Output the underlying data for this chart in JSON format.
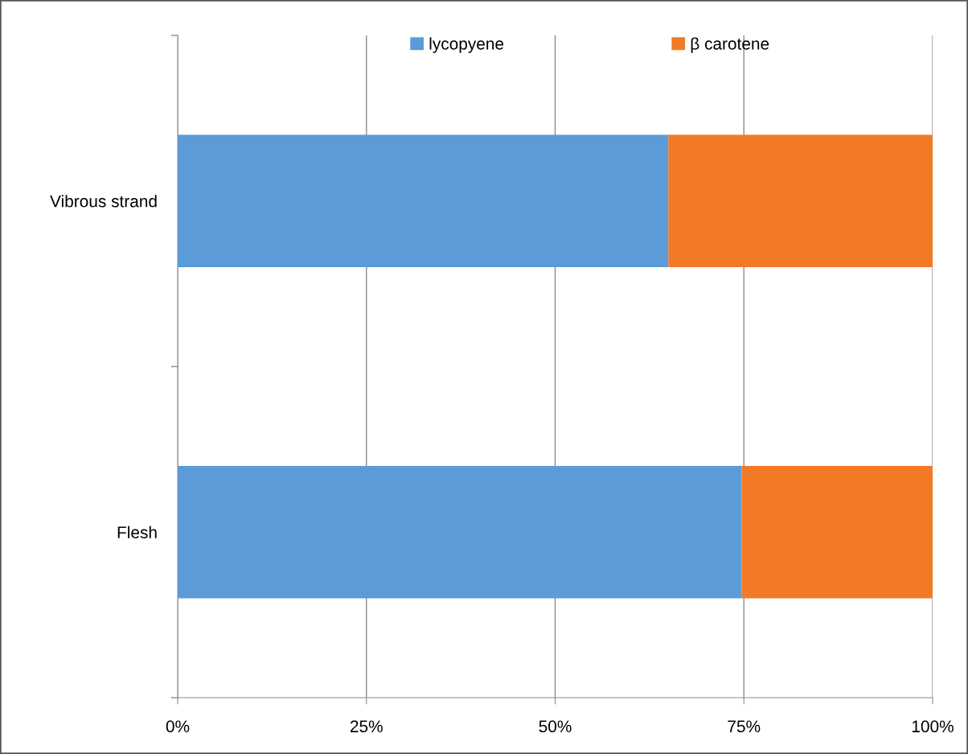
{
  "chart_data": {
    "type": "bar",
    "orientation": "horizontal",
    "stacked": true,
    "categories": [
      "Vibrous strand",
      "Flesh"
    ],
    "series": [
      {
        "name": "lycopyene",
        "color": "#5a9bd8",
        "values": [
          65,
          74.7
        ]
      },
      {
        "name": "β carotene",
        "color": "#f27a27",
        "values": [
          35,
          25.3
        ]
      }
    ],
    "xlim": [
      0,
      100
    ],
    "xticks": [
      {
        "value": 0,
        "label": "0%"
      },
      {
        "value": 25,
        "label": "25%"
      },
      {
        "value": 50,
        "label": "50%"
      },
      {
        "value": 75,
        "label": "75%"
      },
      {
        "value": 100,
        "label": "100%"
      }
    ],
    "grid": "x",
    "legend": "top"
  }
}
